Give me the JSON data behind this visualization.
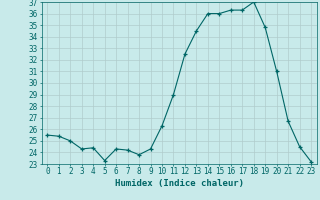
{
  "xlabel": "Humidex (Indice chaleur)",
  "ylabel": "",
  "x": [
    0,
    1,
    2,
    3,
    4,
    5,
    6,
    7,
    8,
    9,
    10,
    11,
    12,
    13,
    14,
    15,
    16,
    17,
    18,
    19,
    20,
    21,
    22,
    23
  ],
  "y": [
    25.5,
    25.4,
    25.0,
    24.3,
    24.4,
    23.3,
    24.3,
    24.2,
    23.8,
    24.3,
    26.3,
    29.0,
    32.5,
    34.5,
    36.0,
    36.0,
    36.3,
    36.3,
    37.0,
    34.8,
    31.0,
    26.7,
    24.5,
    23.2
  ],
  "line_color": "#006666",
  "marker": "+",
  "background_color": "#c8eaea",
  "grid_color": "#b0cccc",
  "ylim": [
    23,
    37
  ],
  "yticks": [
    23,
    24,
    25,
    26,
    27,
    28,
    29,
    30,
    31,
    32,
    33,
    34,
    35,
    36,
    37
  ],
  "xticks": [
    0,
    1,
    2,
    3,
    4,
    5,
    6,
    7,
    8,
    9,
    10,
    11,
    12,
    13,
    14,
    15,
    16,
    17,
    18,
    19,
    20,
    21,
    22,
    23
  ],
  "tick_color": "#006666",
  "xlabel_fontsize": 6.5,
  "tick_fontsize": 5.5
}
